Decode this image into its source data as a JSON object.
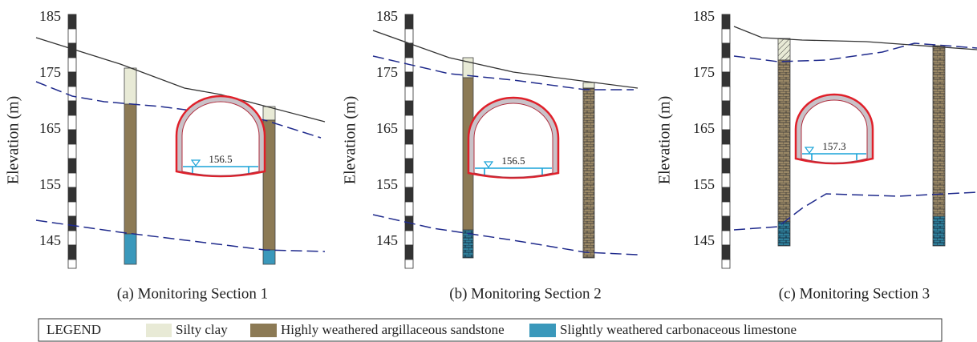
{
  "panels": [
    {
      "caption": "(a) Monitoring Section 1",
      "axis_label": "Elevation (m)",
      "yticks": [
        185,
        175,
        165,
        155,
        145
      ],
      "water_level": 156.5
    },
    {
      "caption": "(b) Monitoring Section 2",
      "axis_label": "Elevation (m)",
      "yticks": [
        185,
        175,
        165,
        155,
        145
      ],
      "water_level": 156.5
    },
    {
      "caption": "(c) Monitoring Section 3",
      "axis_label": "Elevation (m)",
      "yticks": [
        185,
        175,
        165,
        155,
        145
      ],
      "water_level": 157.3
    }
  ],
  "legend": {
    "title": "LEGEND",
    "items": [
      "Silty clay",
      "Highly weathered argillaceous sandstone",
      "Slightly weathered carbonaceous limestone"
    ]
  }
}
